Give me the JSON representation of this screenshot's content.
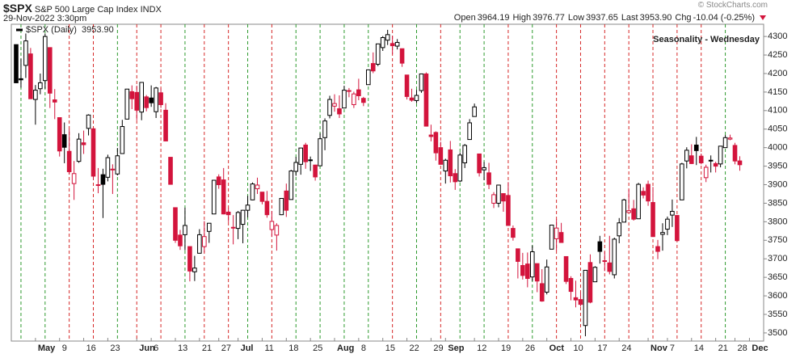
{
  "chart_data": {
    "type": "candlestick",
    "symbol": "$SPX",
    "name": "S&P 500 Large Cap Index",
    "exchange": "INDX",
    "timestamp": "29-Nov-2022 3:30pm",
    "credit": "© StockCharts.com",
    "quote": [
      {
        "label": "Open",
        "value": "3964.19"
      },
      {
        "label": "High",
        "value": "3976.77"
      },
      {
        "label": "Low",
        "value": "3937.65"
      },
      {
        "label": "Last",
        "value": "3953.90"
      },
      {
        "label": "Chg",
        "value": "-10.04 (-0.25%)"
      }
    ],
    "legend": "$SPX (Daily)",
    "legend_value": "3953.90",
    "title": "Seasonality - Wednesday",
    "up_color": "#000000",
    "down_color": "#d3143c",
    "wednesday_up_color": "#2e9a2e",
    "wednesday_down_color": "#d62828",
    "grid": false,
    "x": [
      "2022-04-26",
      "2022-04-27",
      "2022-04-28",
      "2022-04-29",
      "2022-05-02",
      "2022-05-03",
      "2022-05-04",
      "2022-05-05",
      "2022-05-06",
      "2022-05-09",
      "2022-05-10",
      "2022-05-11",
      "2022-05-12",
      "2022-05-13",
      "2022-05-16",
      "2022-05-17",
      "2022-05-18",
      "2022-05-19",
      "2022-05-20",
      "2022-05-23",
      "2022-05-24",
      "2022-05-25",
      "2022-05-26",
      "2022-05-27",
      "2022-05-31",
      "2022-06-01",
      "2022-06-02",
      "2022-06-03",
      "2022-06-06",
      "2022-06-07",
      "2022-06-08",
      "2022-06-09",
      "2022-06-10",
      "2022-06-13",
      "2022-06-14",
      "2022-06-15",
      "2022-06-16",
      "2022-06-17",
      "2022-06-21",
      "2022-06-22",
      "2022-06-23",
      "2022-06-24",
      "2022-06-27",
      "2022-06-28",
      "2022-06-29",
      "2022-06-30",
      "2022-07-01",
      "2022-07-05",
      "2022-07-06",
      "2022-07-07",
      "2022-07-08",
      "2022-07-11",
      "2022-07-12",
      "2022-07-13",
      "2022-07-14",
      "2022-07-15",
      "2022-07-18",
      "2022-07-19",
      "2022-07-20",
      "2022-07-21",
      "2022-07-22",
      "2022-07-25",
      "2022-07-26",
      "2022-07-27",
      "2022-07-28",
      "2022-07-29",
      "2022-08-01",
      "2022-08-02",
      "2022-08-03",
      "2022-08-04",
      "2022-08-05",
      "2022-08-08",
      "2022-08-09",
      "2022-08-10",
      "2022-08-11",
      "2022-08-12",
      "2022-08-15",
      "2022-08-16",
      "2022-08-17",
      "2022-08-18",
      "2022-08-19",
      "2022-08-22",
      "2022-08-23",
      "2022-08-24",
      "2022-08-25",
      "2022-08-26",
      "2022-08-29",
      "2022-08-30",
      "2022-08-31",
      "2022-09-01",
      "2022-09-02",
      "2022-09-06",
      "2022-09-07",
      "2022-09-08",
      "2022-09-09",
      "2022-09-12",
      "2022-09-13",
      "2022-09-14",
      "2022-09-15",
      "2022-09-16",
      "2022-09-19",
      "2022-09-20",
      "2022-09-21",
      "2022-09-22",
      "2022-09-23",
      "2022-09-26",
      "2022-09-27",
      "2022-09-28",
      "2022-09-29",
      "2022-09-30",
      "2022-10-03",
      "2022-10-04",
      "2022-10-05",
      "2022-10-06",
      "2022-10-07",
      "2022-10-10",
      "2022-10-11",
      "2022-10-12",
      "2022-10-13",
      "2022-10-14",
      "2022-10-17",
      "2022-10-18",
      "2022-10-19",
      "2022-10-20",
      "2022-10-21",
      "2022-10-24",
      "2022-10-25",
      "2022-10-26",
      "2022-10-27",
      "2022-10-28",
      "2022-10-31",
      "2022-11-01",
      "2022-11-02",
      "2022-11-03",
      "2022-11-04",
      "2022-11-07",
      "2022-11-08",
      "2022-11-09",
      "2022-11-10",
      "2022-11-11",
      "2022-11-14",
      "2022-11-15",
      "2022-11-16",
      "2022-11-17",
      "2022-11-18",
      "2022-11-21",
      "2022-11-22",
      "2022-11-23",
      "2022-11-25",
      "2022-11-28",
      "2022-11-29"
    ],
    "open": [
      4278,
      4186,
      4222,
      4253,
      4130,
      4159,
      4181,
      4270,
      4129,
      4081,
      4035,
      3990,
      3903,
      3963,
      4013,
      4052,
      4051,
      3900,
      3927,
      3920,
      3942,
      3929,
      3984,
      4077,
      4151,
      4149,
      4096,
      4137,
      4134,
      4097,
      4148,
      4101,
      3974,
      3838,
      3764,
      3765,
      3733,
      3665,
      3715,
      3733,
      3774,
      3821,
      3921,
      3913,
      3826,
      3785,
      3782,
      3793,
      3831,
      3859,
      3889,
      3880,
      3855,
      3779,
      3764,
      3819,
      3883,
      3860,
      3936,
      3955,
      4007,
      3966,
      3953,
      3951,
      4027,
      4087,
      4112,
      4105,
      4107,
      4154,
      4116,
      4156,
      4133,
      4170,
      4227,
      4225,
      4270,
      4290,
      4281,
      4274,
      4267,
      4196,
      4134,
      4127,
      4154,
      4199,
      4034,
      4041,
      4000,
      3937,
      3994,
      3930,
      3910,
      3959,
      4022,
      4084,
      3983,
      3940,
      3932,
      3850,
      3850,
      3876,
      3871,
      3782,
      3727,
      3682,
      3686,
      3651,
      3687,
      3633,
      3610,
      3726,
      3754,
      3771,
      3706,
      3647,
      3595,
      3590,
      3520,
      3690,
      3638,
      3746,
      3695,
      3689,
      3657,
      3762,
      3799,
      3825,
      3835,
      3808,
      3882,
      3901,
      3852,
      3733,
      3766,
      3780,
      3818,
      3817,
      3859,
      3964,
      3978,
      4007,
      3977,
      3919,
      3966,
      3957,
      3956,
      4000,
      4023,
      4006,
      3964.19
    ],
    "high": [
      4278,
      4240,
      4308,
      4269,
      4169,
      4200,
      4308,
      4270,
      4158,
      4081,
      4068,
      4050,
      3964,
      4039,
      4046,
      4090,
      4051,
      3945,
      3943,
      3981,
      3955,
      3999,
      4075,
      4158,
      4168,
      4167,
      4177,
      4142,
      4168,
      4164,
      4160,
      4120,
      3974,
      3839,
      3778,
      3838,
      3733,
      3708,
      3780,
      3802,
      3796,
      3913,
      3928,
      3945,
      3837,
      3818,
      3829,
      3832,
      3870,
      3906,
      3919,
      3880,
      3883,
      3829,
      3796,
      3863,
      3903,
      3940,
      3975,
      3999,
      4013,
      3976,
      3954,
      4039,
      4079,
      4140,
      4144,
      4141,
      4167,
      4161,
      4151,
      4186,
      4137,
      4211,
      4257,
      4280,
      4301,
      4318,
      4302,
      4293,
      4267,
      4196,
      4159,
      4156,
      4200,
      4203,
      4062,
      4044,
      4016,
      3970,
      4018,
      3942,
      3987,
      4010,
      4077,
      4119,
      3983,
      3961,
      3959,
      3880,
      3900,
      3876,
      3907,
      3790,
      3727,
      3716,
      3717,
      3736,
      3687,
      3672,
      3698,
      3791,
      3807,
      3797,
      3706,
      3653,
      3641,
      3609,
      3666,
      3712,
      3680,
      3762,
      3719,
      3762,
      3757,
      3810,
      3862,
      3887,
      3859,
      3905,
      3893,
      3911,
      3894,
      3751,
      3796,
      3814,
      3860,
      3818,
      3959,
      4001,
      4009,
      4029,
      3984,
      3954,
      3979,
      3962,
      4004,
      4034,
      4035,
      4013,
      3976.77
    ],
    "low": [
      4175,
      4162,
      4188,
      4131,
      4062,
      4144,
      4159,
      4107,
      4077,
      3976,
      3958,
      3928,
      3859,
      3959,
      3983,
      4033,
      3912,
      3877,
      3810,
      3909,
      3875,
      3925,
      3984,
      4077,
      4104,
      4074,
      4074,
      4098,
      4110,
      4080,
      4107,
      4017,
      3900,
      3743,
      3724,
      3723,
      3639,
      3640,
      3715,
      3717,
      3743,
      3821,
      3889,
      3820,
      3799,
      3739,
      3753,
      3742,
      3812,
      3858,
      3875,
      3847,
      3811,
      3759,
      3722,
      3818,
      3813,
      3860,
      3924,
      3927,
      3943,
      3937,
      3911,
      3951,
      3993,
      4079,
      4097,
      4080,
      4107,
      4136,
      4107,
      4128,
      4112,
      4170,
      4201,
      4220,
      4261,
      4277,
      4253,
      4265,
      4218,
      4130,
      4124,
      4120,
      4148,
      4057,
      4017,
      3965,
      3954,
      3903,
      3906,
      3886,
      3907,
      3945,
      4022,
      4084,
      3922,
      3912,
      3888,
      3837,
      3839,
      3827,
      3789,
      3749,
      3647,
      3644,
      3623,
      3640,
      3610,
      3584,
      3604,
      3726,
      3722,
      3744,
      3632,
      3588,
      3569,
      3571,
      3491,
      3580,
      3638,
      3687,
      3667,
      3658,
      3647,
      3742,
      3799,
      3825,
      3803,
      3808,
      3863,
      3843,
      3759,
      3699,
      3722,
      3764,
      3786,
      3748,
      3859,
      3944,
      3956,
      3953,
      3955,
      3907,
      3933,
      3933,
      3947,
      3999,
      4020,
      3955,
      3937.65
    ],
    "close": [
      4175,
      4183,
      4288,
      4132,
      4155,
      4175,
      4300,
      4147,
      4123,
      3991,
      4001,
      3935,
      3930,
      4023,
      4008,
      4088,
      3923,
      3900,
      3901,
      3973,
      3941,
      3978,
      4057,
      4158,
      4132,
      4101,
      4176,
      4108,
      4121,
      4161,
      4116,
      4018,
      3901,
      3750,
      3735,
      3790,
      3667,
      3675,
      3765,
      3760,
      3796,
      3912,
      3900,
      3821,
      3819,
      3785,
      3825,
      3831,
      3845,
      3902,
      3899,
      3855,
      3819,
      3801,
      3790,
      3863,
      3831,
      3937,
      3960,
      3999,
      3962,
      3967,
      3921,
      4024,
      4072,
      4130,
      4119,
      4091,
      4155,
      4152,
      4145,
      4140,
      4122,
      4210,
      4207,
      4280,
      4297,
      4305,
      4275,
      4284,
      4228,
      4138,
      4128,
      4141,
      4199,
      4058,
      4030,
      3986,
      3955,
      3966,
      3924,
      3908,
      3980,
      4006,
      4067,
      4110,
      3932,
      3946,
      3901,
      3873,
      3899,
      3856,
      3790,
      3758,
      3693,
      3655,
      3647,
      3719,
      3640,
      3586,
      3678,
      3791,
      3783,
      3744,
      3639,
      3612,
      3589,
      3577,
      3669,
      3583,
      3677,
      3720,
      3695,
      3666,
      3753,
      3797,
      3859,
      3830,
      3807,
      3901,
      3872,
      3856,
      3760,
      3720,
      3771,
      3807,
      3828,
      3749,
      3956,
      3993,
      3957,
      3992,
      3959,
      3947,
      3965,
      3950,
      4004,
      4027,
      4026,
      3964,
      3953.9
    ],
    "ylim": [
      3478,
      4333
    ],
    "yticks": [
      3500,
      3550,
      3600,
      3650,
      3700,
      3750,
      3800,
      3850,
      3900,
      3950,
      4000,
      4050,
      4100,
      4150,
      4200,
      4250,
      4300
    ],
    "xticks": [
      {
        "value": "2022-05-02",
        "label": "May"
      },
      {
        "value": "2022-05-09",
        "label": "9"
      },
      {
        "value": "2022-05-16",
        "label": "16"
      },
      {
        "value": "2022-05-23",
        "label": "23"
      },
      {
        "value": "2022-06-01",
        "label": "Jun"
      },
      {
        "value": "2022-06-06",
        "label": "6"
      },
      {
        "value": "2022-06-13",
        "label": "13"
      },
      {
        "value": "2022-06-21",
        "label": "21"
      },
      {
        "value": "2022-06-27",
        "label": "27"
      },
      {
        "value": "2022-07-01",
        "label": "Jul"
      },
      {
        "value": "2022-07-11",
        "label": "11"
      },
      {
        "value": "2022-07-18",
        "label": "18"
      },
      {
        "value": "2022-07-25",
        "label": "25"
      },
      {
        "value": "2022-08-01",
        "label": "Aug"
      },
      {
        "value": "2022-08-08",
        "label": "8"
      },
      {
        "value": "2022-08-15",
        "label": "15"
      },
      {
        "value": "2022-08-22",
        "label": "22"
      },
      {
        "value": "2022-08-29",
        "label": "29"
      },
      {
        "value": "2022-09-01",
        "label": "Sep"
      },
      {
        "value": "2022-09-12",
        "label": "12"
      },
      {
        "value": "2022-09-19",
        "label": "19"
      },
      {
        "value": "2022-09-26",
        "label": "26"
      },
      {
        "value": "2022-10-03",
        "label": "Oct"
      },
      {
        "value": "2022-10-10",
        "label": "10"
      },
      {
        "value": "2022-10-17",
        "label": "17"
      },
      {
        "value": "2022-10-24",
        "label": "24"
      },
      {
        "value": "2022-11-01",
        "label": "Nov"
      },
      {
        "value": "2022-11-07",
        "label": "7"
      },
      {
        "value": "2022-11-14",
        "label": "14"
      },
      {
        "value": "2022-11-21",
        "label": "21"
      },
      {
        "value": "2022-11-28",
        "label": "28"
      },
      {
        "value": "2022-12-01",
        "label": "Dec"
      }
    ]
  }
}
